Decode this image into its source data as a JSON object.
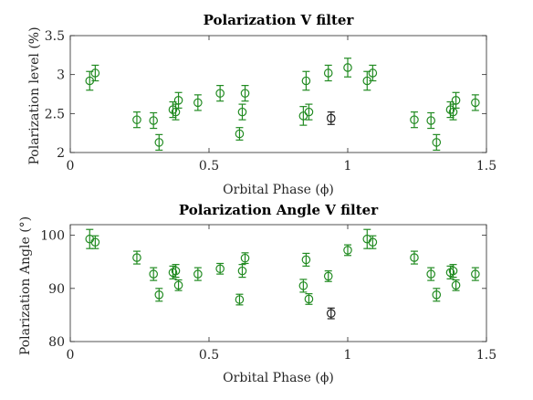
{
  "colors": {
    "green": "#228b22",
    "black": "#222222",
    "axis": "#262626"
  },
  "chart_data": [
    {
      "type": "scatter",
      "title": "Polarization V filter",
      "xlabel": "Orbital Phase (ϕ)",
      "ylabel": "Polarization level (%)",
      "xlim": [
        0,
        1.5
      ],
      "ylim": [
        2,
        3.5
      ],
      "xticks": [
        0,
        0.5,
        1,
        1.5
      ],
      "xtick_labels": [
        "0",
        "0.5",
        "1",
        "1.5"
      ],
      "yticks": [
        2,
        2.5,
        3,
        3.5
      ],
      "ytick_labels": [
        "2",
        "2.5",
        "3",
        "3.5"
      ],
      "grid": false,
      "series": [
        {
          "color": "green",
          "points": [
            {
              "x": 0.07,
              "y": 2.92,
              "err": 0.12
            },
            {
              "x": 0.09,
              "y": 3.02,
              "err": 0.1
            },
            {
              "x": 0.24,
              "y": 2.42,
              "err": 0.1
            },
            {
              "x": 0.3,
              "y": 2.41,
              "err": 0.1
            },
            {
              "x": 0.32,
              "y": 2.13,
              "err": 0.1
            },
            {
              "x": 0.37,
              "y": 2.55,
              "err": 0.1
            },
            {
              "x": 0.38,
              "y": 2.52,
              "err": 0.1
            },
            {
              "x": 0.39,
              "y": 2.67,
              "err": 0.1
            },
            {
              "x": 0.46,
              "y": 2.64,
              "err": 0.1
            },
            {
              "x": 0.54,
              "y": 2.76,
              "err": 0.1
            },
            {
              "x": 0.61,
              "y": 2.24,
              "err": 0.08
            },
            {
              "x": 0.62,
              "y": 2.52,
              "err": 0.1
            },
            {
              "x": 0.63,
              "y": 2.76,
              "err": 0.1
            },
            {
              "x": 0.84,
              "y": 2.47,
              "err": 0.12
            },
            {
              "x": 0.85,
              "y": 2.92,
              "err": 0.12
            },
            {
              "x": 0.86,
              "y": 2.52,
              "err": 0.1
            },
            {
              "x": 0.93,
              "y": 3.02,
              "err": 0.1
            },
            {
              "x": 1.0,
              "y": 3.09,
              "err": 0.12
            },
            {
              "x": 1.07,
              "y": 2.92,
              "err": 0.12
            },
            {
              "x": 1.09,
              "y": 3.02,
              "err": 0.1
            },
            {
              "x": 1.24,
              "y": 2.42,
              "err": 0.1
            },
            {
              "x": 1.3,
              "y": 2.41,
              "err": 0.1
            },
            {
              "x": 1.32,
              "y": 2.13,
              "err": 0.1
            },
            {
              "x": 1.37,
              "y": 2.55,
              "err": 0.1
            },
            {
              "x": 1.38,
              "y": 2.52,
              "err": 0.1
            },
            {
              "x": 1.39,
              "y": 2.67,
              "err": 0.1
            },
            {
              "x": 1.46,
              "y": 2.64,
              "err": 0.1
            }
          ]
        },
        {
          "color": "black",
          "points": [
            {
              "x": 0.94,
              "y": 2.44,
              "err": 0.08
            }
          ]
        }
      ]
    },
    {
      "type": "scatter",
      "title": "Polarization Angle V filter",
      "xlabel": "Orbital Phase (ϕ)",
      "ylabel": "Polarization Angle (°)",
      "xlim": [
        0,
        1.5
      ],
      "ylim": [
        80,
        102
      ],
      "xticks": [
        0,
        0.5,
        1,
        1.5
      ],
      "xtick_labels": [
        "0",
        "0.5",
        "1",
        "1.5"
      ],
      "yticks": [
        80,
        90,
        100
      ],
      "ytick_labels": [
        "80",
        "90",
        "100"
      ],
      "grid": false,
      "series": [
        {
          "color": "green",
          "points": [
            {
              "x": 0.07,
              "y": 99.3,
              "err": 1.8
            },
            {
              "x": 0.09,
              "y": 98.7,
              "err": 1.2
            },
            {
              "x": 0.24,
              "y": 95.8,
              "err": 1.2
            },
            {
              "x": 0.3,
              "y": 92.7,
              "err": 1.2
            },
            {
              "x": 0.32,
              "y": 88.8,
              "err": 1.2
            },
            {
              "x": 0.37,
              "y": 93.0,
              "err": 1.2
            },
            {
              "x": 0.38,
              "y": 93.3,
              "err": 1.2
            },
            {
              "x": 0.39,
              "y": 90.6,
              "err": 1.0
            },
            {
              "x": 0.46,
              "y": 92.7,
              "err": 1.2
            },
            {
              "x": 0.54,
              "y": 93.7,
              "err": 1.0
            },
            {
              "x": 0.61,
              "y": 87.9,
              "err": 1.0
            },
            {
              "x": 0.62,
              "y": 93.3,
              "err": 1.2
            },
            {
              "x": 0.63,
              "y": 95.7,
              "err": 1.0
            },
            {
              "x": 0.84,
              "y": 90.5,
              "err": 1.2
            },
            {
              "x": 0.85,
              "y": 95.4,
              "err": 1.2
            },
            {
              "x": 0.86,
              "y": 88.0,
              "err": 1.0
            },
            {
              "x": 0.93,
              "y": 92.3,
              "err": 1.0
            },
            {
              "x": 1.0,
              "y": 97.2,
              "err": 1.0
            },
            {
              "x": 1.07,
              "y": 99.3,
              "err": 1.8
            },
            {
              "x": 1.09,
              "y": 98.7,
              "err": 1.2
            },
            {
              "x": 1.24,
              "y": 95.8,
              "err": 1.2
            },
            {
              "x": 1.3,
              "y": 92.7,
              "err": 1.2
            },
            {
              "x": 1.32,
              "y": 88.8,
              "err": 1.2
            },
            {
              "x": 1.37,
              "y": 93.0,
              "err": 1.2
            },
            {
              "x": 1.38,
              "y": 93.3,
              "err": 1.2
            },
            {
              "x": 1.39,
              "y": 90.6,
              "err": 1.0
            },
            {
              "x": 1.46,
              "y": 92.7,
              "err": 1.2
            }
          ]
        },
        {
          "color": "black",
          "points": [
            {
              "x": 0.94,
              "y": 85.3,
              "err": 1.0
            }
          ]
        }
      ]
    }
  ]
}
